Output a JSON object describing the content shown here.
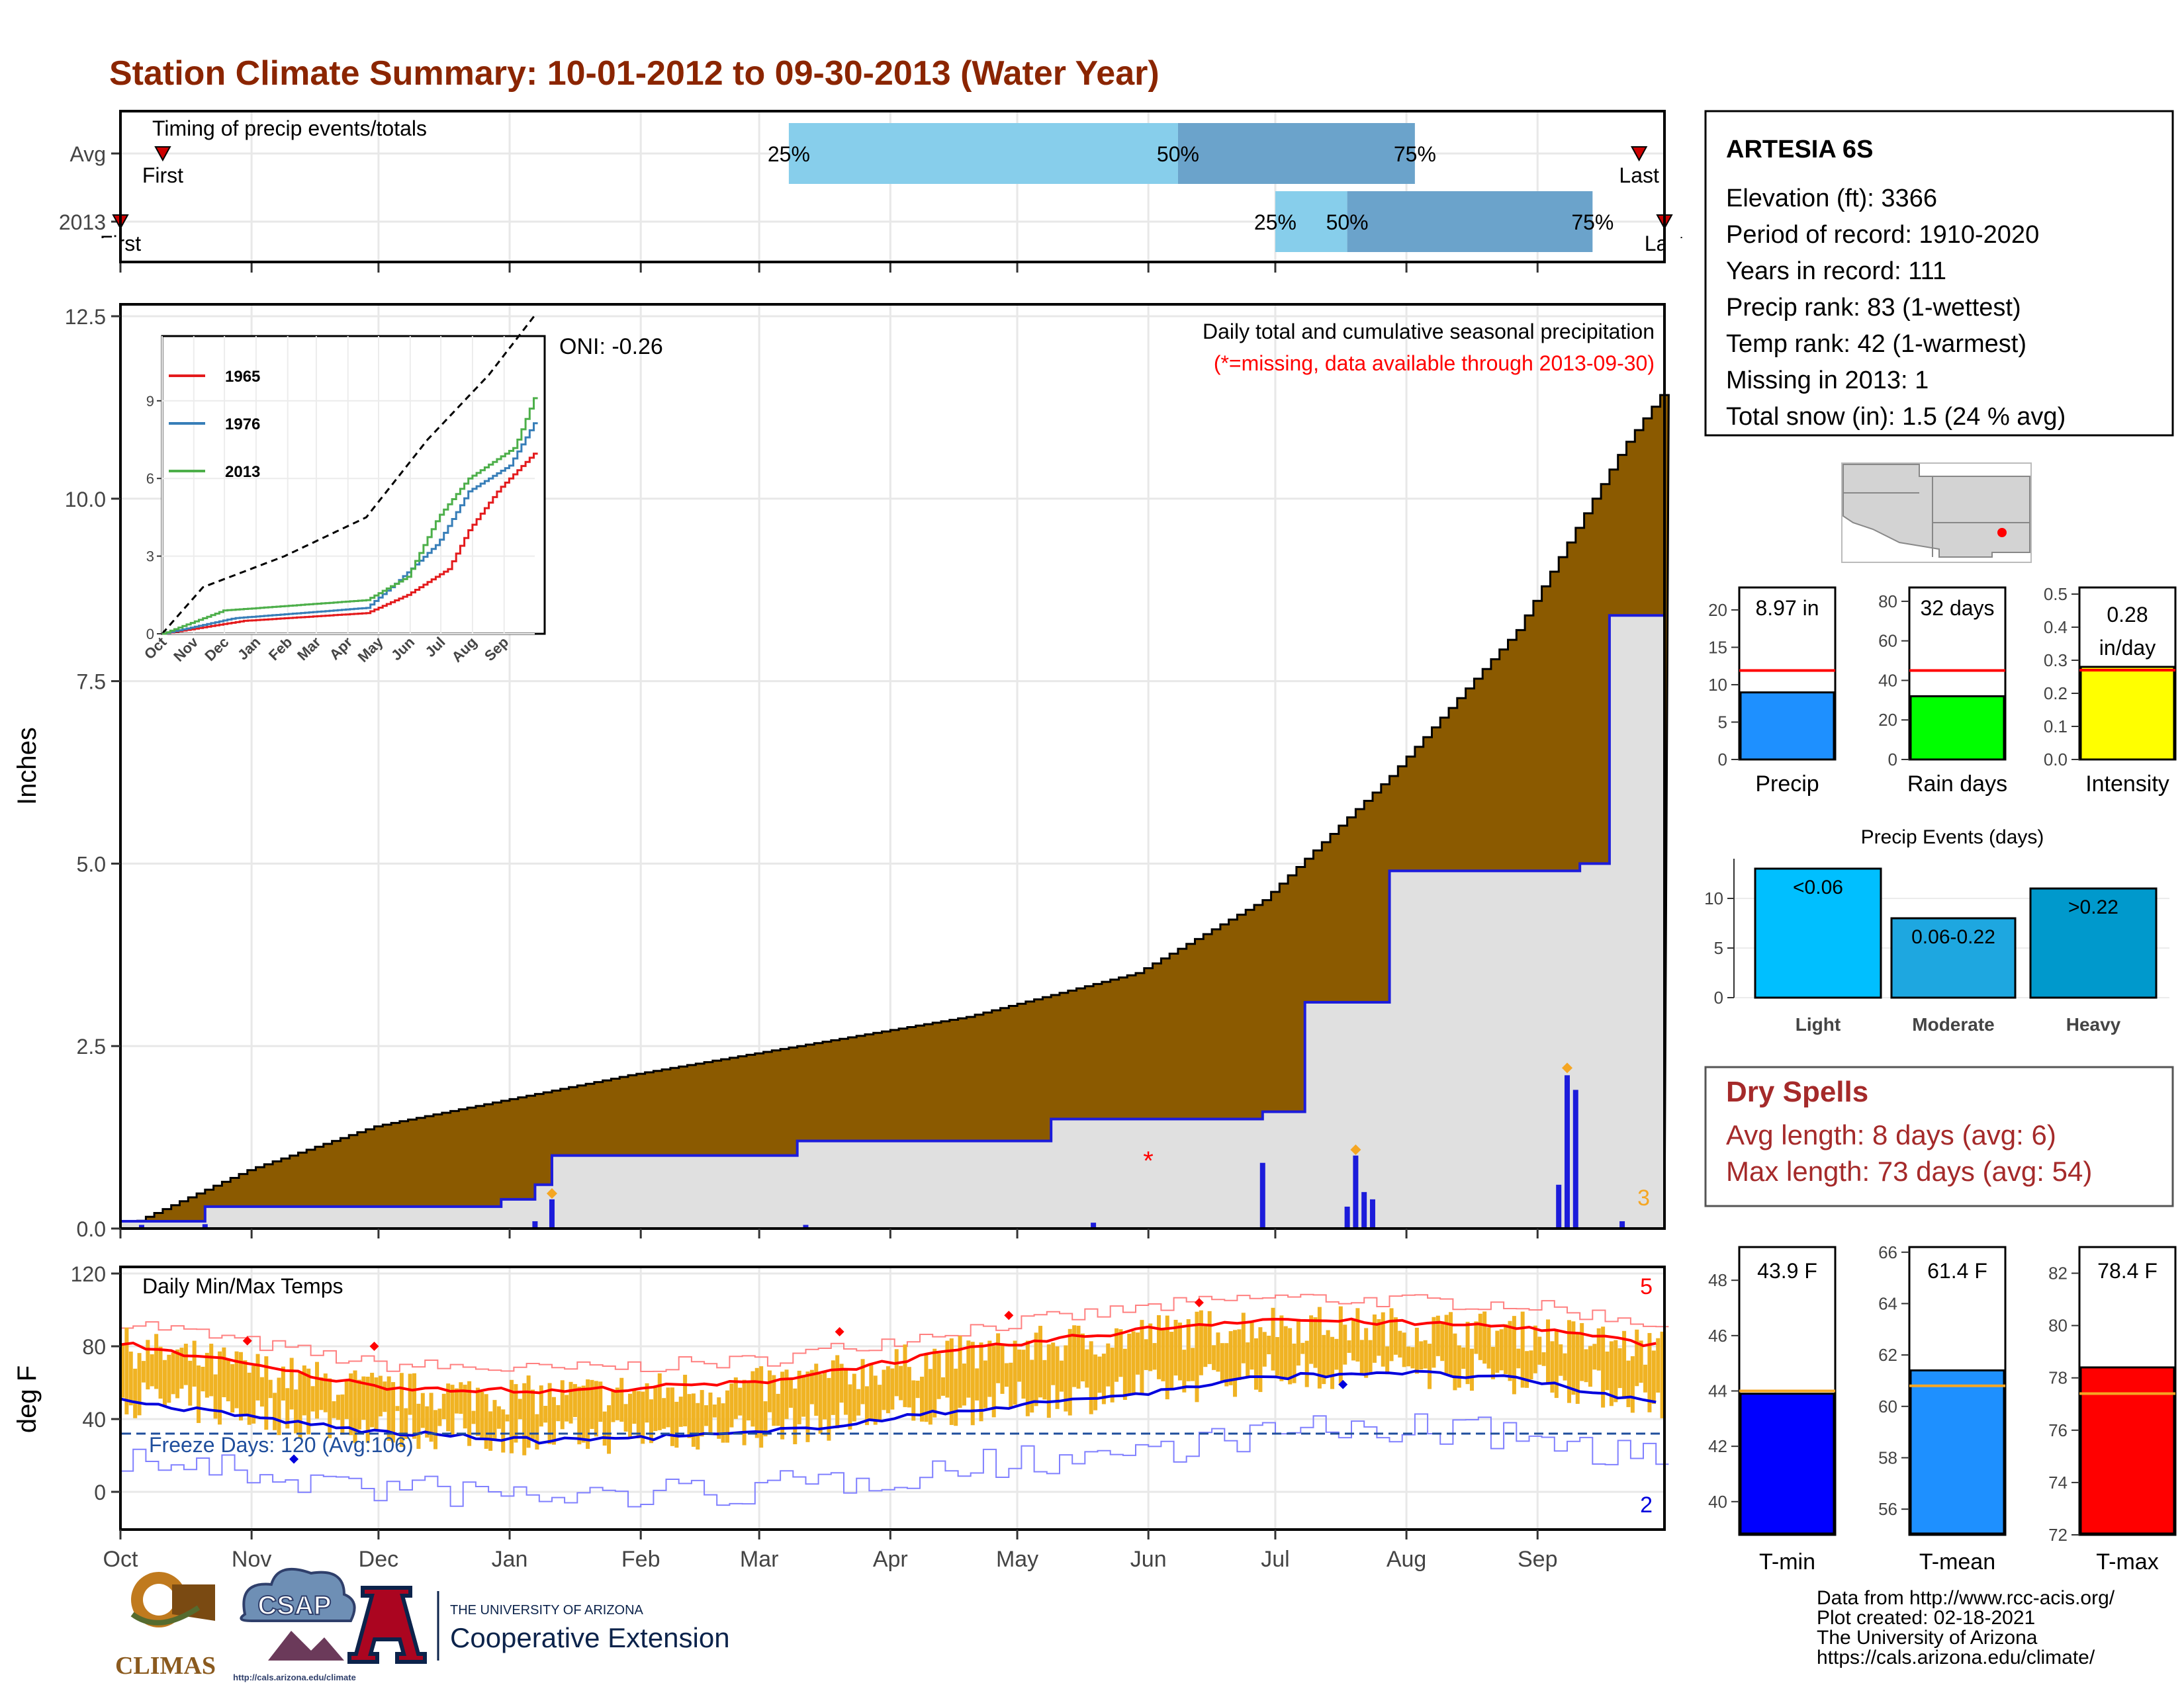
{
  "page_title": "Station Climate Summary: 10-01-2012 to 09-30-2013 (Water Year)",
  "timing": {
    "title": "Timing of precip events/totals",
    "rows": [
      {
        "label": "Avg",
        "first_label": "First",
        "last_label": "Last",
        "first_day": 10,
        "last_day": 359,
        "p25_day": 158,
        "p50_day": 250,
        "p75_day": 306
      },
      {
        "label": "2013",
        "first_label": "First",
        "last_label": "Last",
        "first_day": 0,
        "last_day": 365,
        "p25_day": 273,
        "p50_day": 290,
        "p75_day": 348
      }
    ],
    "pct_labels": [
      "25%",
      "50%",
      "75%"
    ],
    "colors": {
      "light": "#87ceeb",
      "dark": "#6ba3cb",
      "marker": "#cc0000"
    }
  },
  "month_labels": [
    "Oct",
    "Nov",
    "Dec",
    "Jan",
    "Feb",
    "Mar",
    "Apr",
    "May",
    "Jun",
    "Jul",
    "Aug",
    "Sep"
  ],
  "month_start_days": [
    0,
    31,
    61,
    92,
    123,
    151,
    182,
    212,
    243,
    273,
    304,
    335
  ],
  "precip": {
    "ylabel": "Inches",
    "yticks": [
      0.0,
      2.5,
      5.0,
      7.5,
      10.0,
      12.5
    ],
    "ylim": [
      0,
      12.6
    ],
    "oni_label": "ONI: -0.26",
    "title": "Daily total and cumulative seasonal precipitation",
    "missing_note": "(*=missing, data available through 2013-09-30)",
    "missing_marker": "*",
    "corner_count": "3",
    "colors": {
      "avg_fill": "#8b5a00",
      "obs_fill": "#e0e0e0",
      "obs_line": "#1c1cdb",
      "bars": "#1c1cdb",
      "diamond": "#f5a623",
      "missing": "#ff0000"
    }
  },
  "inset": {
    "yticks": [
      "0",
      "3",
      "6",
      "9"
    ],
    "xticks": [
      "Oct",
      "Nov",
      "Dec",
      "Jan",
      "Feb",
      "Mar",
      "Apr",
      "May",
      "Jun",
      "Jul",
      "Aug",
      "Sep"
    ],
    "legend": [
      {
        "name": "1965",
        "color": "#e41a1c"
      },
      {
        "name": "1976",
        "color": "#377eb8"
      },
      {
        "name": "2013",
        "color": "#4daf4a"
      }
    ]
  },
  "temps": {
    "ylabel": "deg F",
    "yticks": [
      0,
      40,
      80,
      120
    ],
    "ylim": [
      -20,
      122
    ],
    "title": "Daily Min/Max Temps",
    "freeze_label": "Freeze Days: 120 (Avg:106)",
    "max_count": "5",
    "min_count": "2",
    "colors": {
      "bars": "#f0b323",
      "avg_max": "#ff0000",
      "avg_min": "#0000dd",
      "freeze": "#1f4e9c"
    }
  },
  "station": {
    "name": "ARTESIA 6S",
    "lines": [
      "Elevation (ft): 3366",
      "Period of record: 1910-2020",
      "Years in record: 111",
      "Precip rank: 83 (1-wettest)",
      "Temp rank: 42 (1-warmest)",
      "Missing in 2013: 1",
      "Total snow (in): 1.5 (24 % avg)"
    ]
  },
  "summary_bars": [
    {
      "label": "Precip",
      "value_label": "8.97 in",
      "value": 8.97,
      "avg": 11.9,
      "ymax": 23,
      "ticks": [
        0,
        5,
        10,
        15,
        20
      ],
      "color": "#1e90ff"
    },
    {
      "label": "Rain days",
      "value_label": "32 days",
      "value": 32,
      "avg": 45,
      "ymax": 87,
      "ticks": [
        0,
        20,
        40,
        60,
        80
      ],
      "color": "#00ff00"
    },
    {
      "label": "Intensity",
      "value_label": "0.28 in/day",
      "value": 0.28,
      "avg": 0.27,
      "ymax": 0.52,
      "ticks": [
        "0.0",
        "0.1",
        "0.2",
        "0.3",
        "0.4",
        "0.5"
      ],
      "color": "#ffff00"
    }
  ],
  "precip_events": {
    "title": "Precip Events (days)",
    "ymax": 14,
    "ticks": [
      0,
      5,
      10
    ],
    "bars": [
      {
        "category": "Light",
        "bin": "<0.06",
        "value": 13,
        "color": "#00bfff"
      },
      {
        "category": "Moderate",
        "bin": "0.06-0.22",
        "value": 8,
        "color": "#1ea7e0"
      },
      {
        "category": "Heavy",
        "bin": ">0.22",
        "value": 11,
        "color": "#0099cc"
      }
    ]
  },
  "dry_spells": {
    "title": "Dry Spells",
    "lines": [
      "Avg length: 8 days (avg: 6)",
      "Max length: 73 days (avg: 54)"
    ]
  },
  "temp_bars": [
    {
      "label": "T-min",
      "value_label": "43.9 F",
      "value": 43.9,
      "avg": 44.0,
      "ylim": [
        38.8,
        49.2
      ],
      "ticks": [
        40,
        42,
        44,
        46,
        48
      ],
      "color": "#0000ff"
    },
    {
      "label": "T-mean",
      "value_label": "61.4 F",
      "value": 61.4,
      "avg": 60.8,
      "ylim": [
        55.0,
        66.2
      ],
      "ticks": [
        56,
        58,
        60,
        62,
        64,
        66
      ],
      "color": "#1e90ff"
    },
    {
      "label": "T-max",
      "value_label": "78.4 F",
      "value": 78.4,
      "avg": 77.4,
      "ylim": [
        72.0,
        83.0
      ],
      "ticks": [
        72,
        74,
        76,
        78,
        80,
        82
      ],
      "color": "#ff0000"
    }
  ],
  "footer": {
    "lines": [
      "Data from http://www.rcc-acis.org/",
      "Plot created: 02-18-2021",
      "The University of Arizona",
      "https://cals.arizona.edu/climate/"
    ],
    "climas": "CLIMAS",
    "csap": "CSAP",
    "csap_url": "http://cals.arizona.edu/climate",
    "ua_small": "THE UNIVERSITY OF ARIZONA",
    "coop": "Cooperative Extension"
  },
  "chart_data": [
    {
      "type": "area",
      "title": "Daily total and cumulative seasonal precipitation",
      "ylabel": "Inches",
      "ylim": [
        0,
        12.5
      ],
      "x_axis": "days since Oct 1 (Oct–Sep)",
      "series": [
        {
          "name": "cumulative average",
          "points": [
            [
              0,
              0
            ],
            [
              30,
              0.8
            ],
            [
              60,
              1.4
            ],
            [
              120,
              2.1
            ],
            [
              200,
              2.9
            ],
            [
              240,
              3.5
            ],
            [
              270,
              4.5
            ],
            [
              300,
              6.2
            ],
            [
              330,
              8.2
            ],
            [
              355,
              10.7
            ],
            [
              365,
              11.5
            ]
          ]
        },
        {
          "name": "2013 cumulative",
          "points": [
            [
              0,
              0.1
            ],
            [
              20,
              0.3
            ],
            [
              90,
              0.4
            ],
            [
              98,
              0.6
            ],
            [
              102,
              1.0
            ],
            [
              160,
              1.2
            ],
            [
              220,
              1.5
            ],
            [
              270,
              1.6
            ],
            [
              280,
              3.1
            ],
            [
              300,
              4.9
            ],
            [
              345,
              5.0
            ],
            [
              352,
              8.4
            ],
            [
              365,
              8.97
            ]
          ]
        }
      ],
      "daily_precip_2013": [
        [
          5,
          0.05
        ],
        [
          20,
          0.06
        ],
        [
          98,
          0.1
        ],
        [
          102,
          0.4
        ],
        [
          162,
          0.05
        ],
        [
          230,
          0.08
        ],
        [
          270,
          0.9
        ],
        [
          290,
          0.3
        ],
        [
          292,
          1.0
        ],
        [
          294,
          0.5
        ],
        [
          296,
          0.4
        ],
        [
          340,
          0.6
        ],
        [
          342,
          2.1
        ],
        [
          344,
          1.9
        ],
        [
          355,
          0.1
        ]
      ]
    },
    {
      "type": "line",
      "title": "Daily Min/Max Temps",
      "ylabel": "deg F",
      "ylim": [
        -20,
        120
      ],
      "series": [
        {
          "name": "avg max",
          "points": [
            [
              0,
              82
            ],
            [
              60,
              58
            ],
            [
              100,
              55
            ],
            [
              150,
              60
            ],
            [
              200,
              78
            ],
            [
              245,
              90
            ],
            [
              270,
              95
            ],
            [
              300,
              93
            ],
            [
              330,
              91
            ],
            [
              365,
              80
            ]
          ]
        },
        {
          "name": "avg min",
          "points": [
            [
              0,
              50
            ],
            [
              60,
              33
            ],
            [
              100,
              28
            ],
            [
              150,
              32
            ],
            [
              200,
              45
            ],
            [
              245,
              55
            ],
            [
              270,
              63
            ],
            [
              300,
              66
            ],
            [
              330,
              62
            ],
            [
              365,
              48
            ]
          ]
        }
      ],
      "freeze_threshold": 32
    }
  ]
}
